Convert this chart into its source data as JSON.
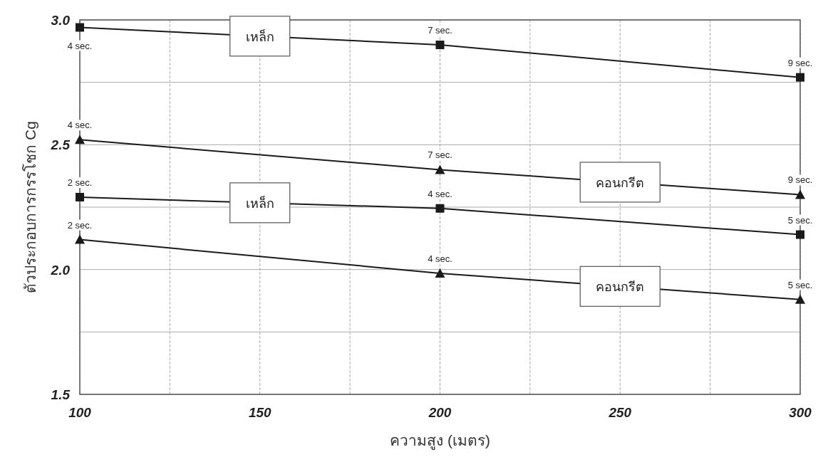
{
  "chart_data": {
    "type": "line",
    "xlabel": "ความสูง (เมตร)",
    "ylabel": "ตัวประกอบการกรรโชก Cg",
    "x": [
      100,
      200,
      300
    ],
    "series": [
      {
        "name": "เหล็ก",
        "color": "#1a1a1a",
        "marker": "square",
        "values": [
          2.97,
          2.9,
          2.77
        ]
      },
      {
        "name": "คอนกรีต",
        "color": "#1a1a1a",
        "marker": "triangle",
        "values": [
          2.52,
          2.4,
          2.3
        ]
      },
      {
        "name": "เหล็ก",
        "color": "#1a1a1a",
        "marker": "square",
        "values": [
          2.29,
          2.245,
          2.14
        ]
      },
      {
        "name": "คอนกรีต",
        "color": "#1a1a1a",
        "marker": "triangle",
        "values": [
          2.12,
          1.985,
          1.88
        ]
      }
    ],
    "annotations": [
      {
        "text": "4 sec.",
        "x": 100,
        "y": 2.97
      },
      {
        "text": "7 sec.",
        "x": 200,
        "y": 2.9
      },
      {
        "text": "9 sec.",
        "x": 300,
        "y": 2.77
      },
      {
        "text": "4 sec.",
        "x": 100,
        "y": 2.52
      },
      {
        "text": "7 sec.",
        "x": 200,
        "y": 2.4
      },
      {
        "text": "9 sec.",
        "x": 300,
        "y": 2.3
      },
      {
        "text": "2 sec.",
        "x": 100,
        "y": 2.29
      },
      {
        "text": "4 sec.",
        "x": 200,
        "y": 2.245
      },
      {
        "text": "5 sec.",
        "x": 300,
        "y": 2.14
      },
      {
        "text": "2 sec.",
        "x": 100,
        "y": 2.12
      },
      {
        "text": "4 sec.",
        "x": 200,
        "y": 1.985
      },
      {
        "text": "5 sec.",
        "x": 300,
        "y": 1.88
      }
    ],
    "xlim": [
      100,
      300
    ],
    "ylim": [
      1.5,
      3.0
    ],
    "xticks": [
      100,
      {
        "value": 125,
        "label": null
      },
      150,
      {
        "value": 175,
        "label": null
      },
      200,
      {
        "value": 225,
        "label": null
      },
      250,
      {
        "value": 275,
        "label": null
      },
      300
    ],
    "yticks": [
      1.5,
      {
        "value": 1.75,
        "label": null
      },
      {
        "value": 2,
        "label": "2.0"
      },
      {
        "value": 2.25,
        "label": null
      },
      2.5,
      {
        "value": 2.75,
        "label": null
      },
      {
        "value": 3,
        "label": "3.0"
      }
    ],
    "grid": true,
    "line_style": "solid"
  }
}
